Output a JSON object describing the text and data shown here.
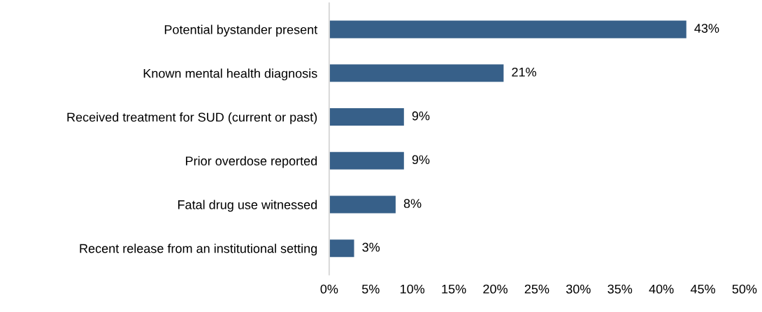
{
  "chart_data": {
    "type": "bar",
    "orientation": "horizontal",
    "categories": [
      "Potential bystander present",
      "Known mental health diagnosis",
      "Received treatment for SUD (current or past)",
      "Prior overdose reported",
      "Fatal drug use witnessed",
      "Recent release from an institutional setting"
    ],
    "values": [
      43,
      21,
      9,
      9,
      8,
      3
    ],
    "value_labels": [
      "43%",
      "21%",
      "9%",
      "9%",
      "8%",
      "3%"
    ],
    "color": "#376089",
    "xlim": [
      0,
      50
    ],
    "xticks": [
      {
        "value": 0,
        "label": "0%"
      },
      {
        "value": 5,
        "label": "5%"
      },
      {
        "value": 10,
        "label": "10%"
      },
      {
        "value": 15,
        "label": "15%"
      },
      {
        "value": 20,
        "label": "20%"
      },
      {
        "value": 25,
        "label": "25%"
      },
      {
        "value": 30,
        "label": "30%"
      },
      {
        "value": 35,
        "label": "35%"
      },
      {
        "value": 40,
        "label": "40%"
      },
      {
        "value": 45,
        "label": "45%"
      },
      {
        "value": 50,
        "label": "50%"
      }
    ],
    "grid": false,
    "legend": false
  }
}
